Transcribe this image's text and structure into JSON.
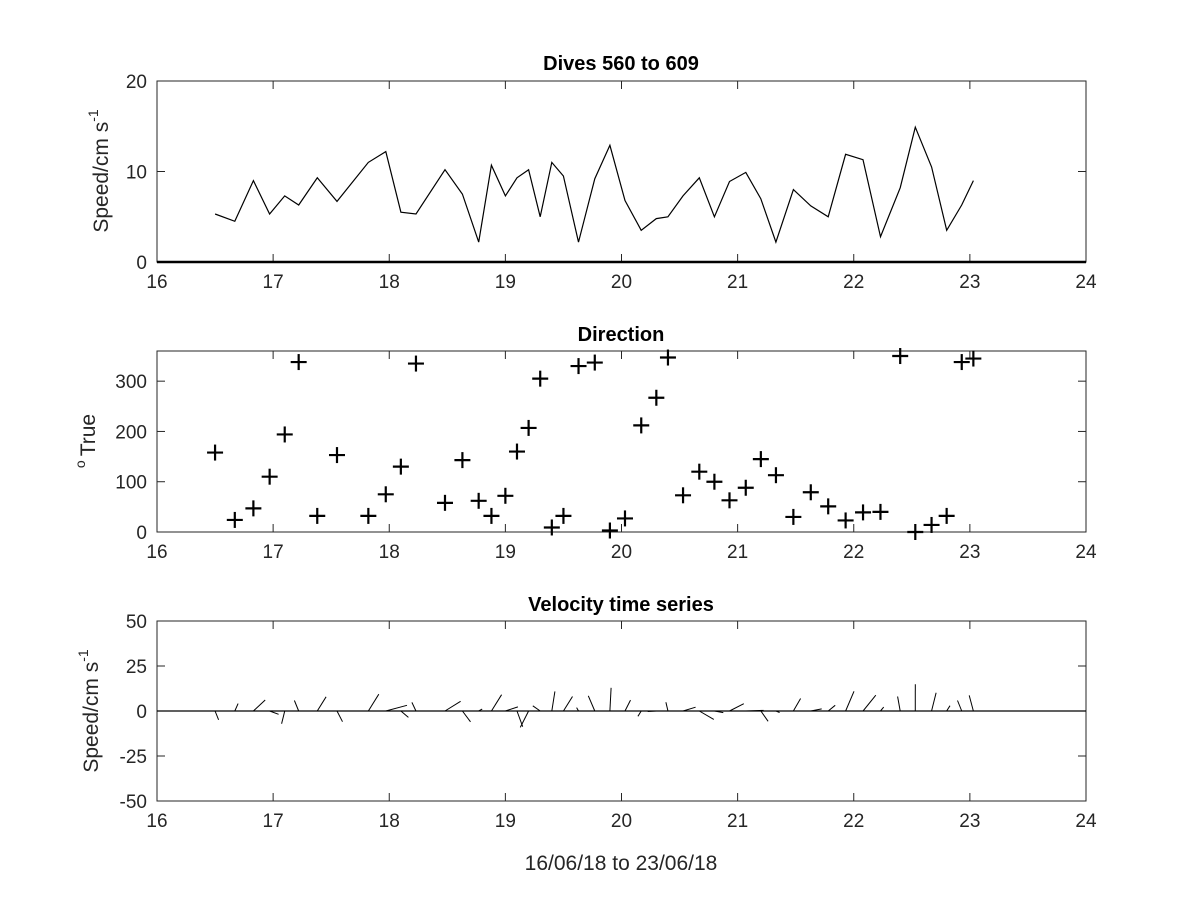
{
  "chart_data": [
    {
      "type": "line",
      "title": "Dives 560 to 609",
      "ylabel_main": "Speed/cm s",
      "ylabel_sup": "-1",
      "xlabel": "",
      "xlim": [
        16,
        24
      ],
      "ylim": [
        0,
        20
      ],
      "xticks": [
        "16",
        "17",
        "18",
        "19",
        "20",
        "21",
        "22",
        "23",
        "24"
      ],
      "yticks": [
        "0",
        "10",
        "20"
      ],
      "color": "#000000",
      "x": [
        16.5,
        16.67,
        16.83,
        16.97,
        17.1,
        17.22,
        17.38,
        17.55,
        17.82,
        17.97,
        18.1,
        18.23,
        18.48,
        18.63,
        18.77,
        18.88,
        19.0,
        19.1,
        19.2,
        19.3,
        19.4,
        19.5,
        19.63,
        19.77,
        19.9,
        20.03,
        20.17,
        20.3,
        20.4,
        20.53,
        20.67,
        20.8,
        20.93,
        21.07,
        21.2,
        21.33,
        21.48,
        21.63,
        21.78,
        21.93,
        22.08,
        22.23,
        22.4,
        22.53,
        22.67,
        22.8,
        22.93,
        23.03
      ],
      "y": [
        5.3,
        4.5,
        9.0,
        5.3,
        7.3,
        6.3,
        9.3,
        6.7,
        11.0,
        12.2,
        5.5,
        5.3,
        10.2,
        7.5,
        2.2,
        10.7,
        7.3,
        9.3,
        10.2,
        5.0,
        11.0,
        9.5,
        2.2,
        9.2,
        12.9,
        6.8,
        3.5,
        4.8,
        5.0,
        7.3,
        9.3,
        5.0,
        8.9,
        9.9,
        7.0,
        2.2,
        8.0,
        6.2,
        5.0,
        11.9,
        11.3,
        2.8,
        8.2,
        14.9,
        10.5,
        3.5,
        6.3,
        9.0
      ]
    },
    {
      "type": "scatter",
      "title": "Direction",
      "ylabel_main": "True",
      "ylabel_sup": "o",
      "xlabel": "",
      "xlim": [
        16,
        24
      ],
      "ylim": [
        0,
        360
      ],
      "xticks": [
        "16",
        "17",
        "18",
        "19",
        "20",
        "21",
        "22",
        "23",
        "24"
      ],
      "yticks": [
        "0",
        "100",
        "200",
        "300"
      ],
      "marker": "+",
      "x": [
        16.5,
        16.67,
        16.83,
        16.97,
        17.1,
        17.22,
        17.38,
        17.55,
        17.82,
        17.97,
        18.1,
        18.23,
        18.48,
        18.63,
        18.77,
        18.88,
        19.0,
        19.1,
        19.2,
        19.3,
        19.4,
        19.5,
        19.63,
        19.77,
        19.9,
        20.03,
        20.17,
        20.3,
        20.4,
        20.53,
        20.67,
        20.8,
        20.93,
        21.07,
        21.2,
        21.33,
        21.48,
        21.63,
        21.78,
        21.93,
        22.08,
        22.23,
        22.4,
        22.53,
        22.67,
        22.8,
        22.93,
        23.03
      ],
      "y": [
        158,
        24,
        47,
        110,
        194,
        338,
        32,
        153,
        32,
        75,
        130,
        335,
        58,
        143,
        62,
        32,
        72,
        160,
        207,
        305,
        9,
        32,
        330,
        337,
        3,
        27,
        212,
        267,
        347,
        73,
        120,
        100,
        63,
        88,
        145,
        113,
        30,
        79,
        51,
        23,
        39,
        40,
        350,
        0,
        14,
        32,
        338,
        345
      ]
    },
    {
      "type": "quiver",
      "title": "Velocity time series",
      "ylabel_main": "Speed/cm s",
      "ylabel_sup": "-1",
      "xlabel": "16/06/18 to 23/06/18",
      "xlim": [
        16,
        24
      ],
      "ylim": [
        -50,
        50
      ],
      "xticks": [
        "16",
        "17",
        "18",
        "19",
        "20",
        "21",
        "22",
        "23",
        "24"
      ],
      "yticks": [
        "-50",
        "-25",
        "0",
        "25",
        "50"
      ],
      "baseline": 0,
      "x": [
        16.5,
        16.67,
        16.83,
        16.97,
        17.1,
        17.22,
        17.38,
        17.55,
        17.82,
        17.97,
        18.1,
        18.23,
        18.48,
        18.63,
        18.77,
        18.88,
        19.0,
        19.1,
        19.2,
        19.3,
        19.4,
        19.5,
        19.63,
        19.77,
        19.9,
        20.03,
        20.17,
        20.3,
        20.4,
        20.53,
        20.67,
        20.8,
        20.93,
        21.07,
        21.2,
        21.33,
        21.48,
        21.63,
        21.78,
        21.93,
        22.08,
        22.23,
        22.4,
        22.53,
        22.67,
        22.8,
        22.93,
        23.03
      ],
      "speed": [
        5.3,
        4.5,
        9.0,
        5.3,
        7.3,
        6.3,
        9.3,
        6.7,
        11.0,
        12.2,
        5.5,
        5.3,
        10.2,
        7.5,
        2.2,
        10.7,
        7.3,
        9.3,
        10.2,
        5.0,
        11.0,
        9.5,
        2.2,
        9.2,
        12.9,
        6.8,
        3.5,
        4.8,
        5.0,
        7.3,
        9.3,
        5.0,
        8.9,
        9.9,
        7.0,
        2.2,
        8.0,
        6.2,
        5.0,
        11.9,
        11.3,
        2.8,
        8.2,
        14.9,
        10.5,
        3.5,
        6.3,
        9.0
      ],
      "direction_deg_true": [
        158,
        24,
        47,
        110,
        194,
        338,
        32,
        153,
        32,
        75,
        130,
        335,
        58,
        143,
        62,
        32,
        72,
        160,
        207,
        305,
        9,
        32,
        330,
        337,
        3,
        27,
        212,
        267,
        347,
        73,
        120,
        100,
        63,
        88,
        145,
        113,
        30,
        79,
        51,
        23,
        39,
        40,
        350,
        0,
        14,
        32,
        338,
        345
      ]
    }
  ]
}
